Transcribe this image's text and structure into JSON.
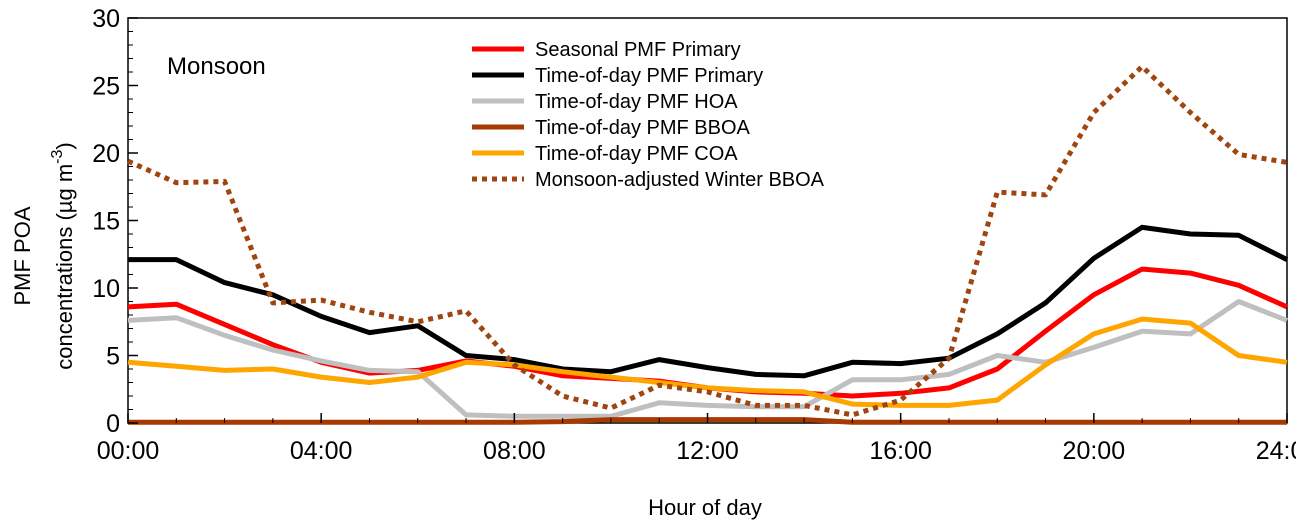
{
  "chart_data": {
    "type": "line",
    "annotation": "Monsoon",
    "xlabel": "Hour of day",
    "ylabel_line1": "PMF POA",
    "ylabel_line2_prefix": "concentrations (µg m",
    "ylabel_exponent": "-3",
    "ylabel_line2_suffix": ")",
    "xlim": [
      0,
      24
    ],
    "ylim": [
      0,
      30
    ],
    "x_ticks": [
      0,
      4,
      8,
      12,
      16,
      20,
      24
    ],
    "x_tick_labels": [
      "00:00",
      "04:00",
      "08:00",
      "12:00",
      "16:00",
      "20:00",
      "24:00"
    ],
    "y_ticks": [
      0,
      5,
      10,
      15,
      20,
      25,
      30
    ],
    "y_tick_labels": [
      "0",
      "5",
      "10",
      "15",
      "20",
      "25",
      "30"
    ],
    "legend_position": "top-center",
    "x": [
      0,
      1,
      2,
      3,
      4,
      5,
      6,
      7,
      8,
      9,
      10,
      11,
      12,
      13,
      14,
      15,
      16,
      17,
      18,
      19,
      20,
      21,
      22,
      23,
      24
    ],
    "series": [
      {
        "name": "Seasonal PMF Primary",
        "color": "#ff0000",
        "dash": "solid",
        "values": [
          8.6,
          8.8,
          7.3,
          5.8,
          4.5,
          3.7,
          3.9,
          4.6,
          4.2,
          3.5,
          3.3,
          3.1,
          2.6,
          2.3,
          2.2,
          2.0,
          2.2,
          2.6,
          4.0,
          6.8,
          9.5,
          11.4,
          11.1,
          10.2,
          8.6
        ]
      },
      {
        "name": "Time-of-day PMF Primary",
        "color": "#000000",
        "dash": "solid",
        "values": [
          12.1,
          12.1,
          10.4,
          9.5,
          7.9,
          6.7,
          7.2,
          5.0,
          4.7,
          4.0,
          3.8,
          4.7,
          4.1,
          3.6,
          3.5,
          4.5,
          4.4,
          4.8,
          6.6,
          8.9,
          12.2,
          14.5,
          14.0,
          13.9,
          12.1
        ]
      },
      {
        "name": "Time-of-day PMF HOA",
        "color": "#bfbfbf",
        "dash": "solid",
        "values": [
          7.6,
          7.8,
          6.5,
          5.4,
          4.6,
          3.9,
          3.8,
          0.6,
          0.5,
          0.5,
          0.5,
          1.5,
          1.3,
          1.2,
          1.2,
          3.2,
          3.2,
          3.6,
          5.0,
          4.5,
          5.6,
          6.8,
          6.6,
          9.0,
          7.6
        ]
      },
      {
        "name": "Time-of-day PMF BBOA",
        "color": "#a63a00",
        "dash": "solid",
        "values": [
          0.05,
          0.05,
          0.05,
          0.05,
          0.05,
          0.05,
          0.05,
          0.05,
          0.05,
          0.1,
          0.25,
          0.25,
          0.25,
          0.25,
          0.25,
          0.05,
          0.05,
          0.05,
          0.05,
          0.05,
          0.05,
          0.05,
          0.05,
          0.05,
          0.05
        ]
      },
      {
        "name": "Time-of-day PMF COA",
        "color": "#ffa500",
        "dash": "solid",
        "values": [
          4.5,
          4.2,
          3.9,
          4.0,
          3.4,
          3.0,
          3.4,
          4.5,
          4.3,
          3.8,
          3.4,
          3.0,
          2.6,
          2.4,
          2.3,
          1.4,
          1.3,
          1.3,
          1.7,
          4.3,
          6.6,
          7.7,
          7.4,
          5.0,
          4.5
        ]
      },
      {
        "name": "Monsoon-adjusted Winter BBOA",
        "color": "#a0450f",
        "dash": "dotted",
        "values": [
          19.4,
          17.8,
          17.9,
          8.9,
          9.1,
          8.2,
          7.5,
          8.3,
          4.3,
          2.0,
          1.1,
          2.8,
          2.3,
          1.3,
          1.3,
          0.6,
          1.7,
          4.8,
          17.1,
          16.9,
          23.0,
          26.4,
          23.0,
          19.9,
          19.3
        ]
      }
    ]
  }
}
